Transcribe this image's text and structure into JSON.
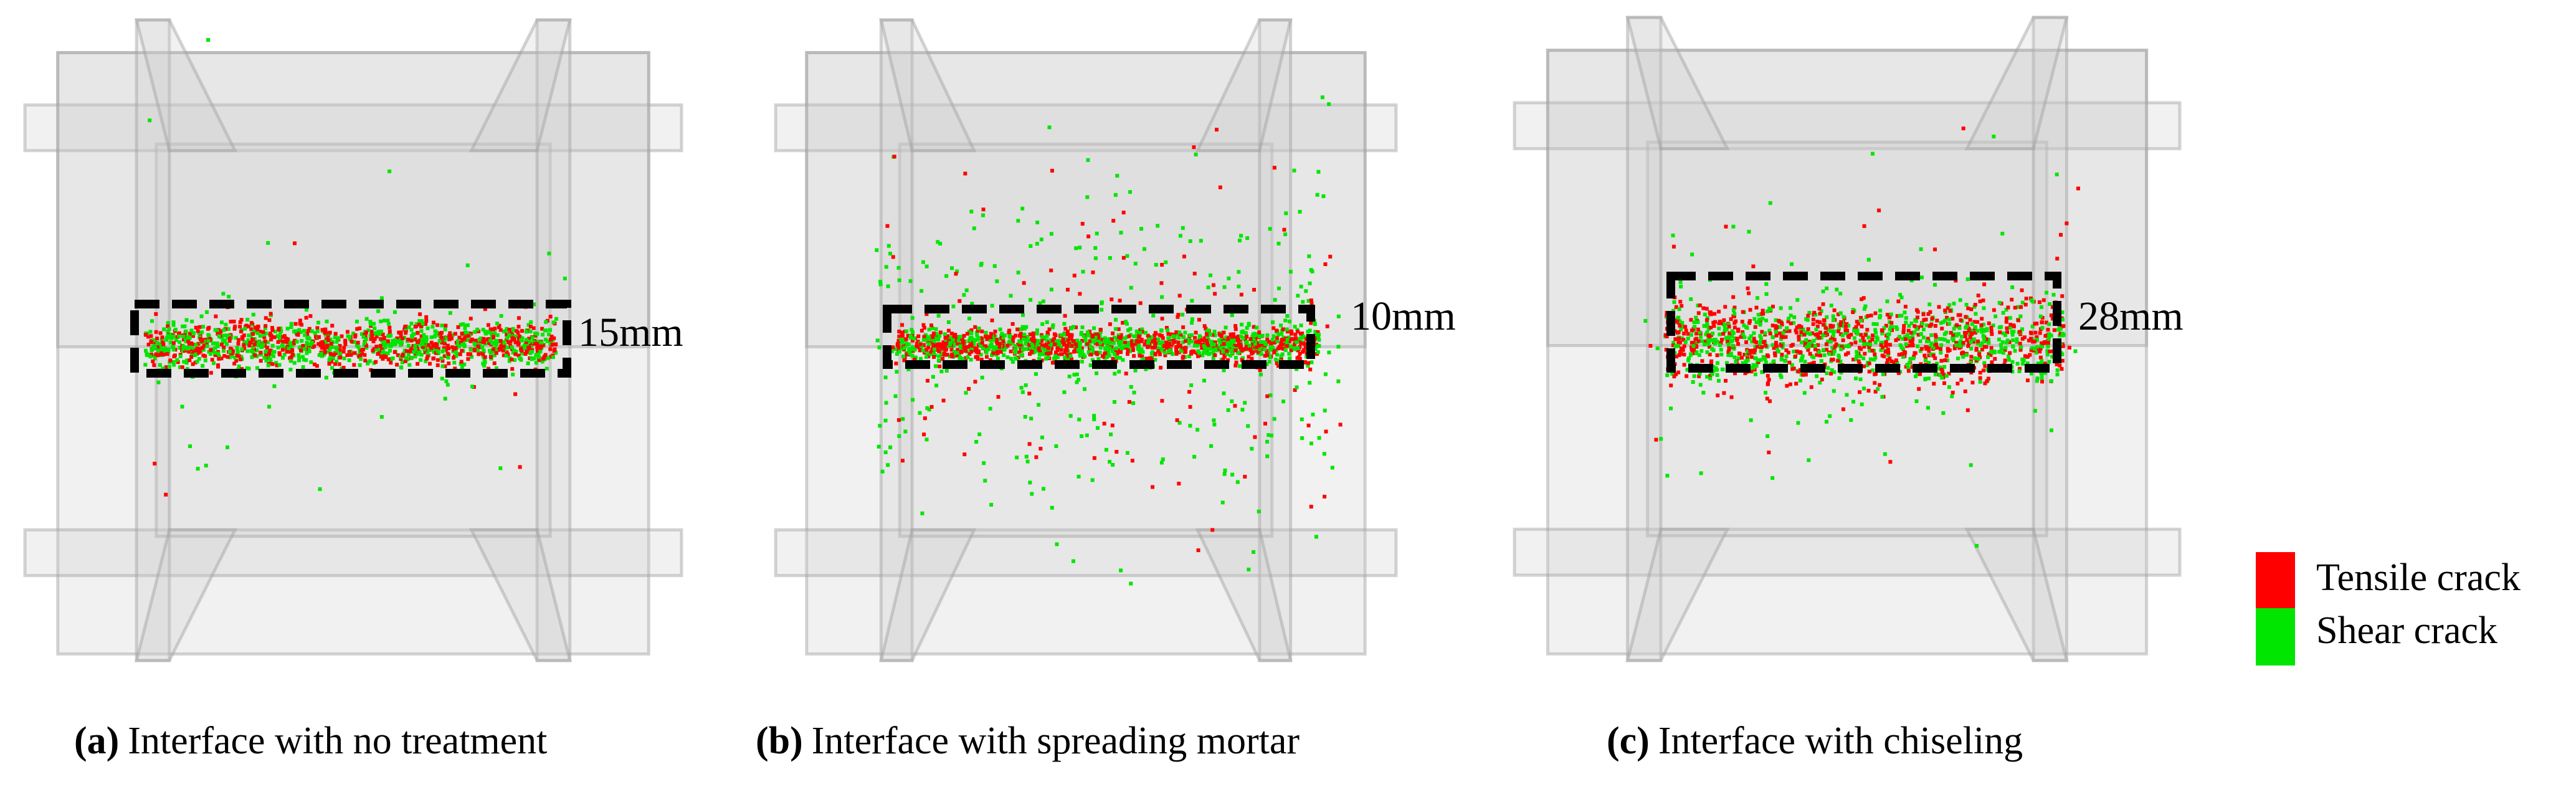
{
  "panels": [
    {
      "tag": "(a)",
      "caption": "Interface with no treatment",
      "thickness": "15mm"
    },
    {
      "tag": "(b)",
      "caption": "Interface with spreading mortar",
      "thickness": "10mm"
    },
    {
      "tag": "(c)",
      "caption": "Interface with chiseling",
      "thickness": "28mm"
    }
  ],
  "legend": [
    {
      "label": "Tensile crack",
      "color": "#ff0000"
    },
    {
      "label": "Shear crack",
      "color": "#00e600"
    }
  ]
}
